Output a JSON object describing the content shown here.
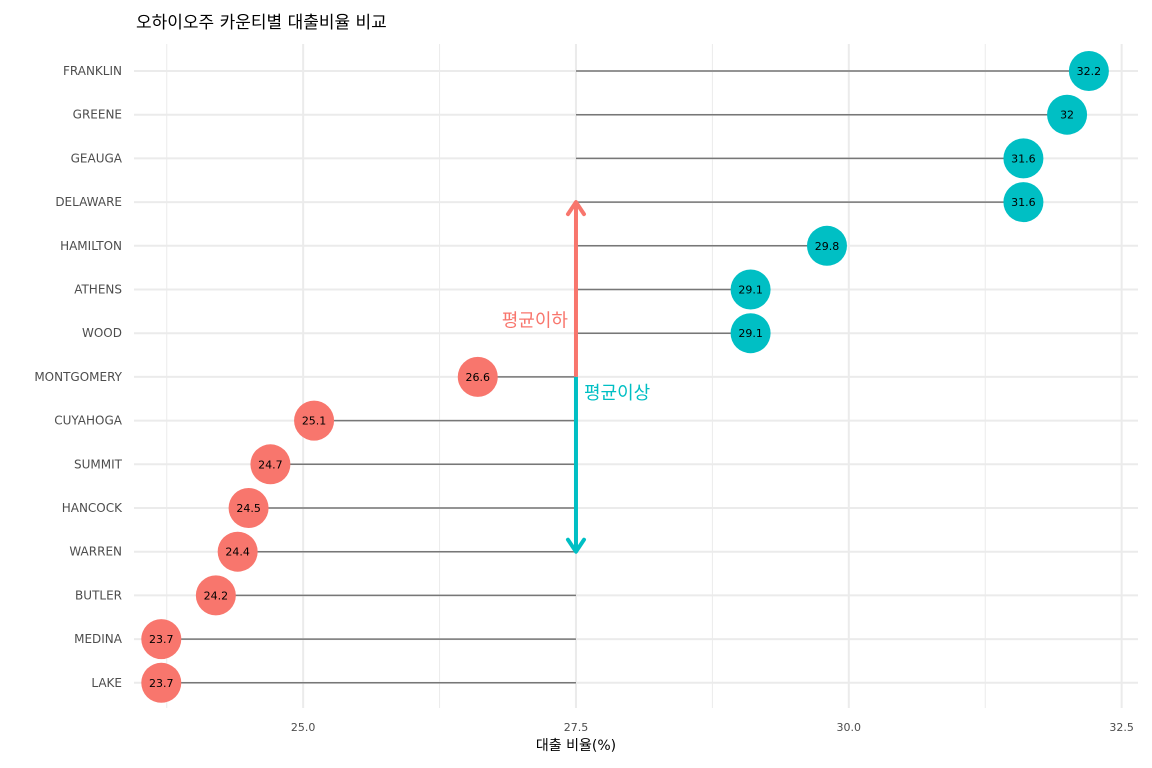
{
  "chart_data": {
    "type": "lollipop",
    "title": "오하이오주 카운티별 대출비율 비교",
    "xlabel": "대출 비율(%)",
    "ylabel": "",
    "xlim": [
      23.45,
      32.65
    ],
    "baseline": 27.5,
    "x_ticks": [
      25.0,
      27.5,
      30.0,
      32.5
    ],
    "x_tick_labels": [
      "25.0",
      "27.5",
      "30.0",
      "32.5"
    ],
    "grid": true,
    "categories": [
      "FRANKLIN",
      "GREENE",
      "GEAUGA",
      "DELAWARE",
      "HAMILTON",
      "ATHENS",
      "WOOD",
      "MONTGOMERY",
      "CUYAHOGA",
      "SUMMIT",
      "HANCOCK",
      "WARREN",
      "BUTLER",
      "MEDINA",
      "LAKE"
    ],
    "values": [
      32.2,
      32,
      31.6,
      31.6,
      29.8,
      29.1,
      29.1,
      26.6,
      25.1,
      24.7,
      24.5,
      24.4,
      24.2,
      23.7,
      23.7
    ],
    "value_labels": [
      "32.2",
      "32",
      "31.6",
      "31.6",
      "29.8",
      "29.1",
      "29.1",
      "26.6",
      "25.1",
      "24.7",
      "24.5",
      "24.4",
      "24.2",
      "23.7",
      "23.7"
    ],
    "colors": {
      "above": "#00BFC4",
      "below": "#F8766D",
      "segment": "#777777",
      "grid": "#EBEBEB",
      "axis_text": "#4D4D4D"
    },
    "annotations": [
      {
        "text": "평균이하",
        "color": "#F8766D",
        "arrow_from": 27.5,
        "arrow_to_category": "DELAWARE"
      },
      {
        "text": "평균이상",
        "color": "#00BFC4",
        "arrow_from": 27.5,
        "arrow_to_category": "WARREN"
      }
    ]
  }
}
